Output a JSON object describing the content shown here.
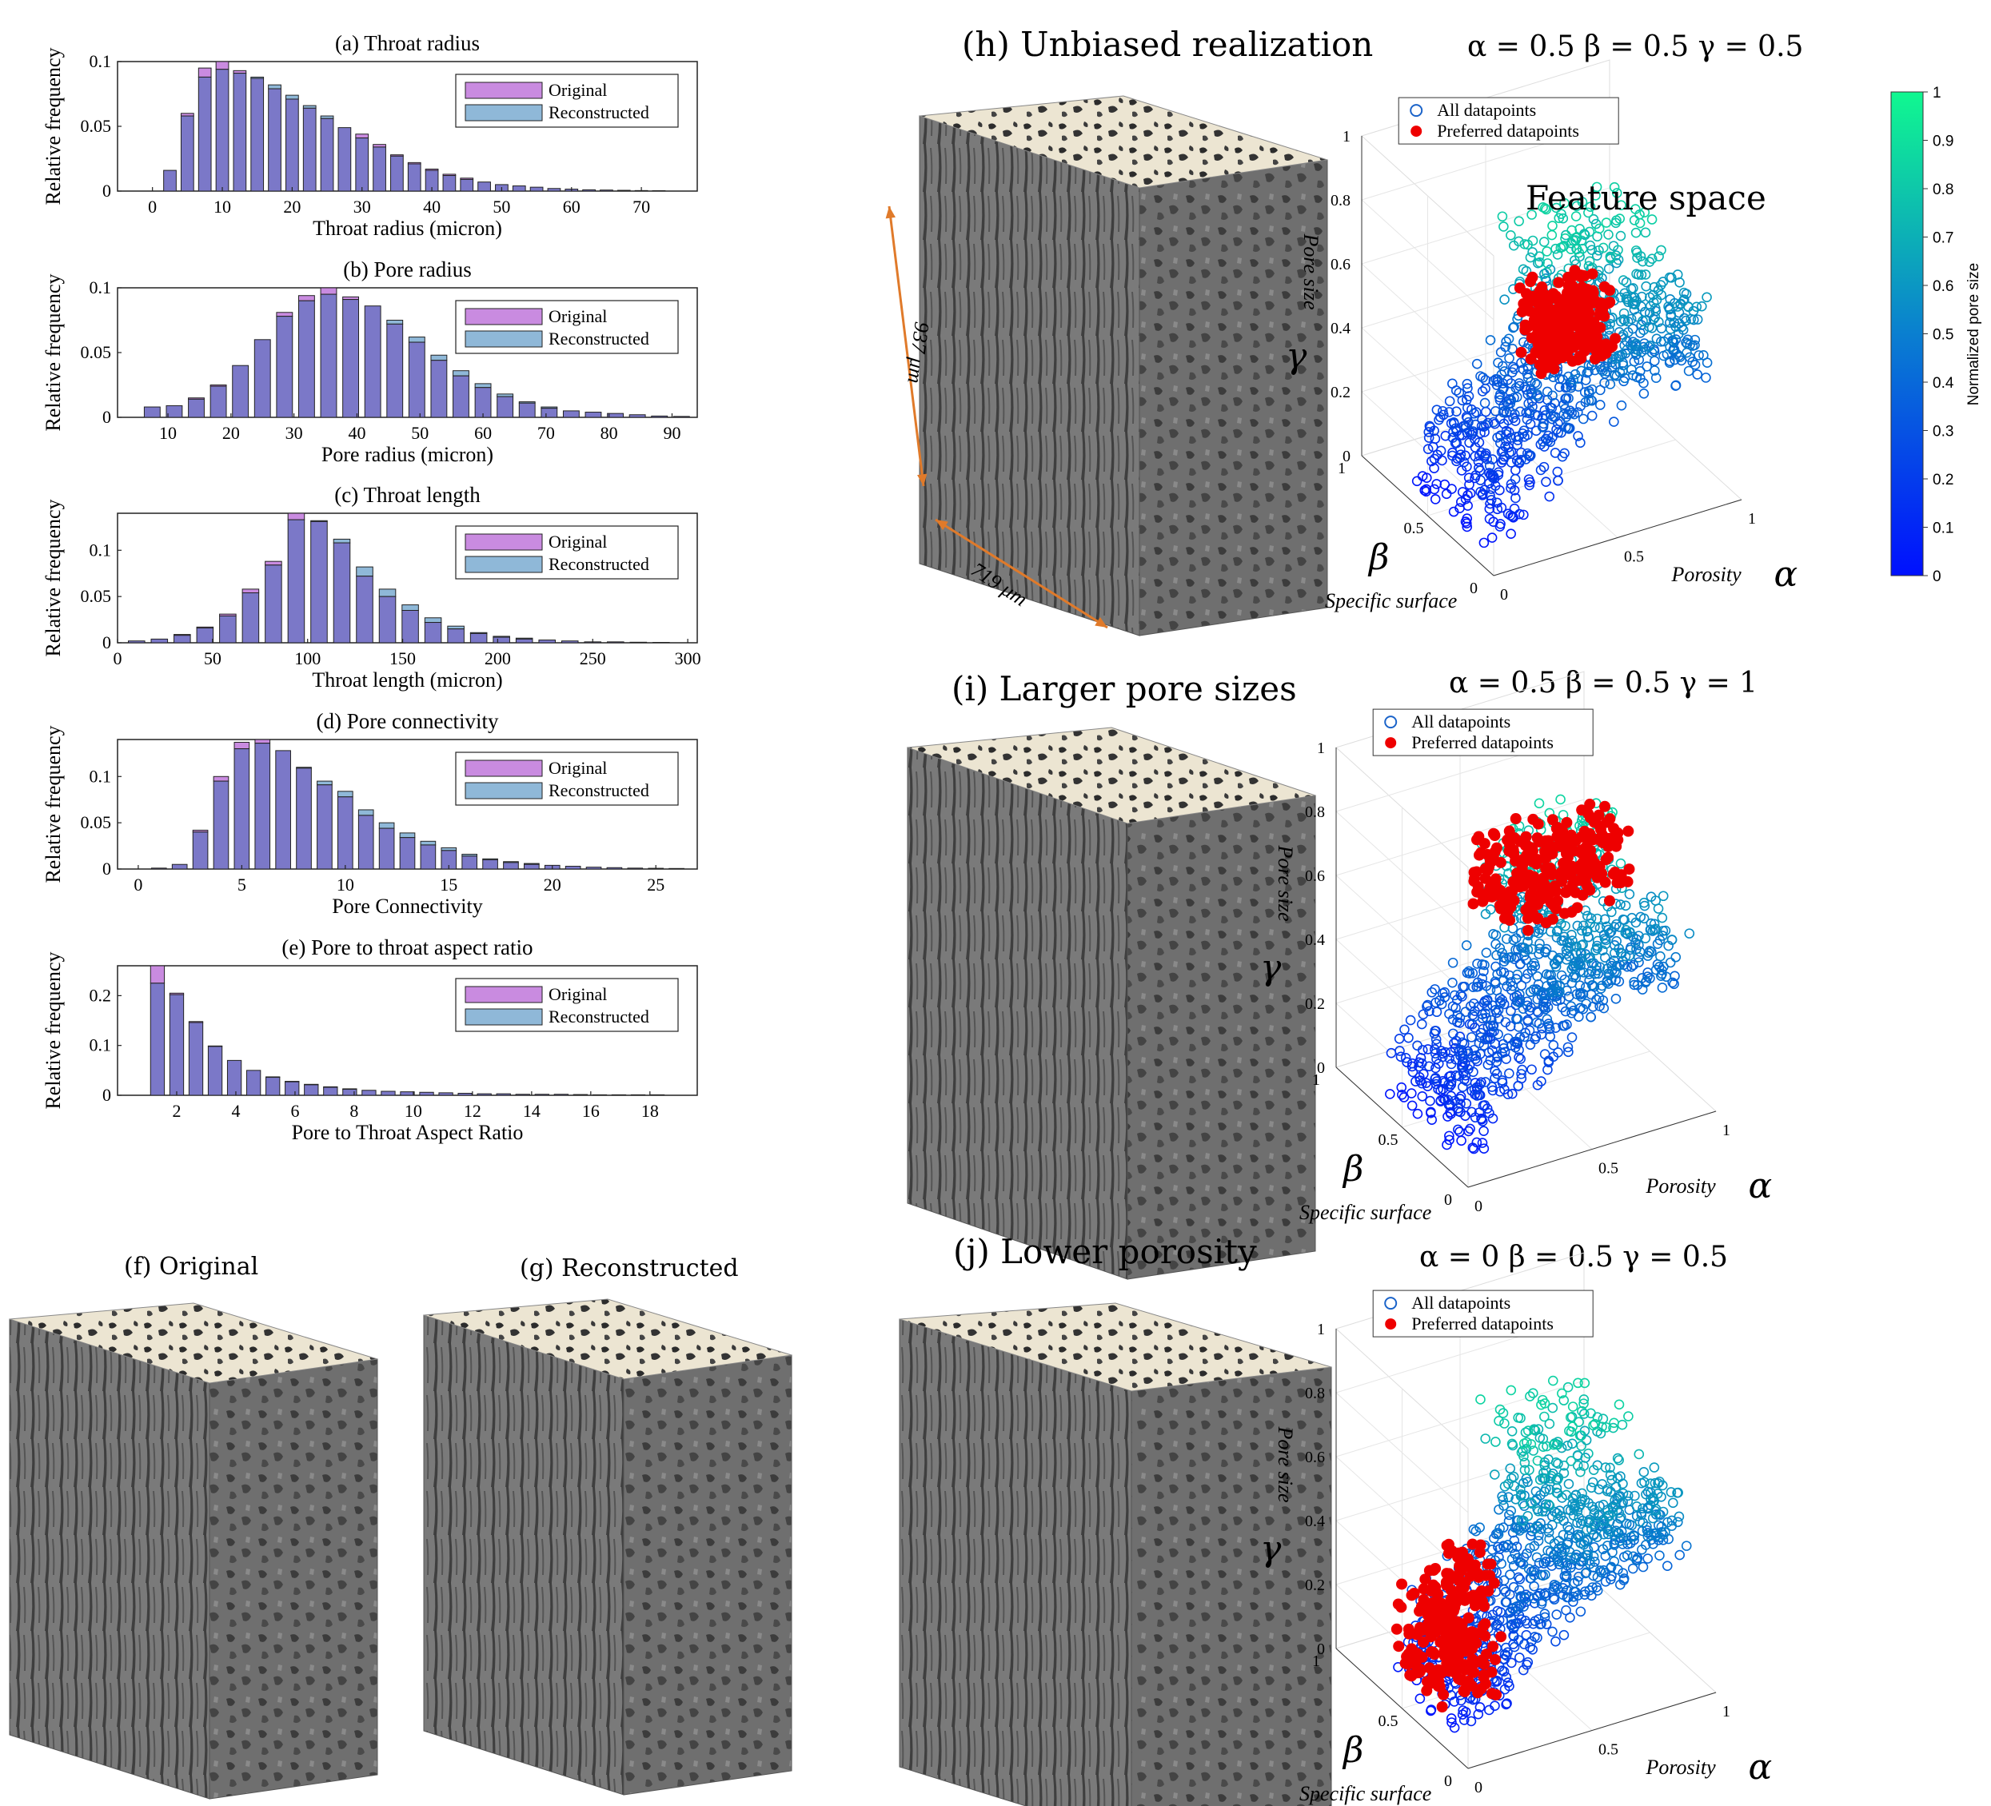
{
  "colors": {
    "original": "#c98be0",
    "reconstructed": "#8fb8d8",
    "overlap": "#7b78c8",
    "preferred": "#ee0000",
    "cube": "#6e6e6e",
    "cube_top": "#f0ead8",
    "arrow": "#e07a2a"
  },
  "hist_legend": {
    "original": "Original",
    "reconstructed": "Reconstructed"
  },
  "histograms": [
    {
      "title": "(a) Throat radius",
      "xlabel": "Throat radius (micron)",
      "ylabel": "Relative frequency",
      "xlim": [
        -5,
        78
      ],
      "xticks": [
        0,
        10,
        20,
        30,
        40,
        50,
        60,
        70
      ],
      "ylim": [
        0,
        0.1
      ],
      "yticks": [
        0,
        0.05,
        0.1
      ],
      "ytick_labels": [
        "0",
        "0.05",
        "0.1"
      ]
    },
    {
      "title": "(b) Pore radius",
      "xlabel": "Pore radius (micron)",
      "ylabel": "Relative frequency",
      "xlim": [
        2,
        94
      ],
      "xticks": [
        10,
        20,
        30,
        40,
        50,
        60,
        70,
        80,
        90
      ],
      "ylim": [
        0,
        0.1
      ],
      "yticks": [
        0,
        0.05,
        0.1
      ],
      "ytick_labels": [
        "0",
        "0.05",
        "0.1"
      ]
    },
    {
      "title": "(c) Throat length",
      "xlabel": "Throat length (micron)",
      "ylabel": "Relative frequency",
      "xlim": [
        0,
        305
      ],
      "xticks": [
        0,
        50,
        100,
        150,
        200,
        250,
        300
      ],
      "ylim": [
        0,
        0.14
      ],
      "yticks": [
        0,
        0.05,
        0.1
      ],
      "ytick_labels": [
        "0",
        "0.05",
        "0.1"
      ]
    },
    {
      "title": "(d) Pore connectivity",
      "xlabel": "Pore Connectivity",
      "ylabel": "Relative frequency",
      "xlim": [
        -1,
        27
      ],
      "xticks": [
        0,
        5,
        10,
        15,
        20,
        25
      ],
      "ylim": [
        0,
        0.14
      ],
      "yticks": [
        0,
        0.05,
        0.1
      ],
      "ytick_labels": [
        "0",
        "0.05",
        "0.1"
      ]
    },
    {
      "title": "(e) Pore to throat aspect ratio",
      "xlabel": "Pore to Throat Aspect Ratio",
      "ylabel": "Relative frequency",
      "xlim": [
        0,
        19.6
      ],
      "xticks": [
        2,
        4,
        6,
        8,
        10,
        12,
        14,
        16,
        18
      ],
      "ylim": [
        0,
        0.26
      ],
      "yticks": [
        0,
        0.1,
        0.2
      ],
      "ytick_labels": [
        "0",
        "0.1",
        "0.2"
      ]
    }
  ],
  "chart_data": [
    {
      "type": "bar",
      "title": "(a) Throat radius",
      "xlabel": "Throat radius (micron)",
      "ylabel": "Relative frequency",
      "ylim": [
        0,
        0.1
      ],
      "categories": [
        2.5,
        5,
        7.5,
        10,
        12.5,
        15,
        17.5,
        20,
        22.5,
        25,
        27.5,
        30,
        32.5,
        35,
        37.5,
        40,
        42.5,
        45,
        47.5,
        50,
        52.5,
        55,
        57.5,
        60,
        62.5,
        65,
        67.5,
        70,
        72.5
      ],
      "series": [
        {
          "name": "Original",
          "values": [
            0.016,
            0.06,
            0.095,
            0.1,
            0.093,
            0.087,
            0.079,
            0.071,
            0.064,
            0.056,
            0.049,
            0.044,
            0.036,
            0.028,
            0.022,
            0.017,
            0.013,
            0.01,
            0.007,
            0.005,
            0.004,
            0.003,
            0.002,
            0.0015,
            0.001,
            0.0008,
            0.0006,
            0.0004,
            0.0003
          ]
        },
        {
          "name": "Reconstructed",
          "values": [
            0.016,
            0.058,
            0.088,
            0.094,
            0.091,
            0.088,
            0.082,
            0.074,
            0.066,
            0.058,
            0.049,
            0.041,
            0.034,
            0.027,
            0.021,
            0.016,
            0.012,
            0.009,
            0.007,
            0.005,
            0.004,
            0.003,
            0.002,
            0.0015,
            0.001,
            0.0008,
            0.0006,
            0.0004,
            0.0003
          ]
        }
      ]
    },
    {
      "type": "bar",
      "title": "(b) Pore radius",
      "xlabel": "Pore radius (micron)",
      "ylabel": "Relative frequency",
      "ylim": [
        0,
        0.1
      ],
      "categories": [
        7.5,
        11,
        14.5,
        18,
        21.5,
        25,
        28.5,
        32,
        35.5,
        39,
        42.5,
        46,
        49.5,
        53,
        56.5,
        60,
        63.5,
        67,
        70.5,
        74,
        77.5,
        81,
        84.5,
        88,
        91.5
      ],
      "series": [
        {
          "name": "Original",
          "values": [
            0.008,
            0.009,
            0.015,
            0.025,
            0.04,
            0.06,
            0.081,
            0.094,
            0.1,
            0.093,
            0.086,
            0.072,
            0.058,
            0.044,
            0.032,
            0.023,
            0.016,
            0.011,
            0.007,
            0.005,
            0.004,
            0.003,
            0.002,
            0.001,
            0.0007
          ]
        },
        {
          "name": "Reconstructed",
          "values": [
            0.008,
            0.009,
            0.014,
            0.024,
            0.04,
            0.06,
            0.078,
            0.09,
            0.095,
            0.091,
            0.086,
            0.075,
            0.062,
            0.048,
            0.036,
            0.026,
            0.018,
            0.012,
            0.008,
            0.005,
            0.004,
            0.003,
            0.002,
            0.001,
            0.0007
          ]
        }
      ]
    },
    {
      "type": "bar",
      "title": "(c) Throat length",
      "xlabel": "Throat length (micron)",
      "ylabel": "Relative frequency",
      "ylim": [
        0,
        0.14
      ],
      "categories": [
        10,
        22,
        34,
        46,
        58,
        70,
        82,
        94,
        106,
        118,
        130,
        142,
        154,
        166,
        178,
        190,
        202,
        214,
        226,
        238,
        250,
        262,
        274,
        286
      ],
      "series": [
        {
          "name": "Original",
          "values": [
            0.002,
            0.004,
            0.009,
            0.017,
            0.031,
            0.058,
            0.088,
            0.14,
            0.131,
            0.108,
            0.072,
            0.05,
            0.035,
            0.022,
            0.015,
            0.01,
            0.006,
            0.004,
            0.003,
            0.002,
            0.001,
            0.001,
            0.0006,
            0.0004
          ]
        },
        {
          "name": "Reconstructed",
          "values": [
            0.002,
            0.004,
            0.008,
            0.016,
            0.029,
            0.054,
            0.084,
            0.133,
            0.132,
            0.112,
            0.082,
            0.058,
            0.041,
            0.027,
            0.018,
            0.011,
            0.007,
            0.005,
            0.003,
            0.002,
            0.001,
            0.001,
            0.0006,
            0.0004
          ]
        }
      ]
    },
    {
      "type": "bar",
      "title": "(d) Pore connectivity",
      "xlabel": "Pore Connectivity",
      "ylabel": "Relative frequency",
      "ylim": [
        0,
        0.14
      ],
      "categories": [
        1,
        2,
        3,
        4,
        5,
        6,
        7,
        8,
        9,
        10,
        11,
        12,
        13,
        14,
        15,
        16,
        17,
        18,
        19,
        20,
        21,
        22,
        23,
        24,
        25,
        26
      ],
      "series": [
        {
          "name": "Original",
          "values": [
            0.001,
            0.005,
            0.042,
            0.1,
            0.137,
            0.14,
            0.128,
            0.109,
            0.091,
            0.078,
            0.058,
            0.044,
            0.034,
            0.026,
            0.02,
            0.014,
            0.01,
            0.007,
            0.005,
            0.004,
            0.003,
            0.002,
            0.0015,
            0.001,
            0.0008,
            0.0006
          ]
        },
        {
          "name": "Reconstructed",
          "values": [
            0.001,
            0.005,
            0.04,
            0.095,
            0.13,
            0.136,
            0.128,
            0.11,
            0.095,
            0.084,
            0.064,
            0.05,
            0.039,
            0.03,
            0.023,
            0.016,
            0.011,
            0.008,
            0.006,
            0.004,
            0.003,
            0.002,
            0.0015,
            0.001,
            0.0008,
            0.0006
          ]
        }
      ]
    },
    {
      "type": "bar",
      "title": "(e) Pore to throat aspect ratio",
      "xlabel": "Pore to Throat Aspect Ratio",
      "ylabel": "Relative frequency",
      "ylim": [
        0,
        0.26
      ],
      "categories": [
        1.35,
        2,
        2.65,
        3.3,
        3.95,
        4.6,
        5.25,
        5.9,
        6.55,
        7.2,
        7.85,
        8.5,
        9.15,
        9.8,
        10.45,
        11.1,
        11.75,
        12.4,
        13.05,
        13.7,
        14.35,
        15,
        15.65,
        16.3,
        16.95,
        17.6,
        18.25
      ],
      "series": [
        {
          "name": "Original",
          "values": [
            0.26,
            0.205,
            0.148,
            0.098,
            0.07,
            0.05,
            0.036,
            0.027,
            0.021,
            0.016,
            0.012,
            0.01,
            0.008,
            0.007,
            0.006,
            0.005,
            0.004,
            0.003,
            0.003,
            0.002,
            0.002,
            0.002,
            0.0015,
            0.001,
            0.001,
            0.001,
            0.001
          ]
        },
        {
          "name": "Reconstructed",
          "values": [
            0.225,
            0.202,
            0.146,
            0.099,
            0.07,
            0.05,
            0.037,
            0.028,
            0.022,
            0.017,
            0.013,
            0.01,
            0.008,
            0.007,
            0.006,
            0.005,
            0.004,
            0.003,
            0.003,
            0.002,
            0.002,
            0.002,
            0.0015,
            0.001,
            0.001,
            0.001,
            0.001
          ]
        }
      ]
    },
    {
      "type": "scatter",
      "title": "Feature space",
      "panel": "h",
      "axes": {
        "x": "Porosity",
        "y": "Specific surface",
        "z": "Pore size",
        "x_symbol": "α",
        "y_symbol": "β",
        "z_symbol": "γ"
      },
      "ticks": {
        "x": [
          "0",
          "0.5",
          "1"
        ],
        "y": [
          "0",
          "0.5",
          "1"
        ],
        "z": [
          "0",
          "0.2",
          "0.4",
          "0.6",
          "0.8",
          "1"
        ]
      },
      "legend": [
        "All datapoints",
        "Preferred datapoints"
      ],
      "preferred": {
        "alpha": 0.5,
        "beta": 0.5,
        "gamma": 0.5
      },
      "colorbar": {
        "label": "Normalized pore size",
        "range": [
          0,
          1
        ],
        "ticks": [
          "0",
          "0.1",
          "0.2",
          "0.3",
          "0.4",
          "0.5",
          "0.6",
          "0.7",
          "0.8",
          "0.9",
          "1"
        ]
      }
    },
    {
      "type": "scatter",
      "panel": "i",
      "axes": {
        "x": "Porosity",
        "y": "Specific surface",
        "z": "Pore size",
        "x_symbol": "α",
        "y_symbol": "β",
        "z_symbol": "γ"
      },
      "legend": [
        "All datapoints",
        "Preferred datapoints"
      ],
      "preferred": {
        "alpha": 0.5,
        "beta": 0.5,
        "gamma": 1
      }
    },
    {
      "type": "scatter",
      "panel": "j",
      "axes": {
        "x": "Porosity",
        "y": "Specific surface",
        "z": "Pore size",
        "x_symbol": "α",
        "y_symbol": "β",
        "z_symbol": "γ"
      },
      "legend": [
        "All datapoints",
        "Preferred datapoints"
      ],
      "preferred": {
        "alpha": 0,
        "beta": 0.5,
        "gamma": 0.5
      }
    }
  ],
  "panels": {
    "h": {
      "title": "(h) Unbiased realization",
      "params": "α = 0.5    β = 0.5    γ = 0.5",
      "feature_space": "Feature space"
    },
    "i": {
      "title": "(i) Larger pore sizes",
      "params": "α = 0.5    β = 0.5    γ = 1"
    },
    "j": {
      "title": "(j) Lower porosity",
      "params": "α = 0    β = 0.5    γ = 0.5"
    },
    "f": {
      "title": "(f) Original"
    },
    "g": {
      "title": "(g) Reconstructed"
    }
  },
  "scatter_labels": {
    "x_axis": "Porosity",
    "y_axis": "Specific surface",
    "z_axis": "Pore size",
    "x_sym": "α",
    "y_sym": "β",
    "z_sym": "γ",
    "legend_all": "All datapoints",
    "legend_pref": "Preferred datapoints"
  },
  "scatter_ticks": {
    "z": [
      "0",
      "0.2",
      "0.4",
      "0.6",
      "0.8",
      "1"
    ],
    "x0": "0",
    "x05": "0.5",
    "x1": "1",
    "y0": "0",
    "y05": "0.5",
    "y1": "1"
  },
  "colorbar": {
    "label": "Normalized pore size",
    "ticks": [
      "0",
      "0.1",
      "0.2",
      "0.3",
      "0.4",
      "0.5",
      "0.6",
      "0.7",
      "0.8",
      "0.9",
      "1"
    ]
  },
  "dimensions": {
    "height": "937 μm",
    "width": "719 μm"
  }
}
